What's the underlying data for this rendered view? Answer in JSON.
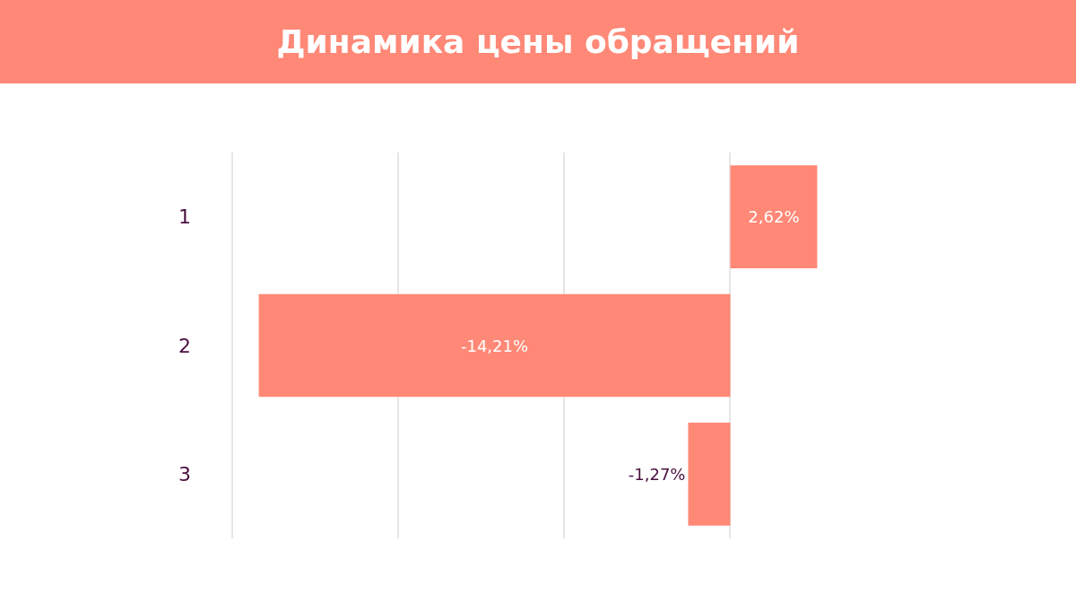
{
  "chart_data": {
    "type": "bar",
    "orientation": "horizontal",
    "title": "Динамика цены обращений",
    "categories": [
      "1",
      "2",
      "3"
    ],
    "values": [
      2.62,
      -14.21,
      -1.27
    ],
    "value_labels": [
      "2,62%",
      "-14,21%",
      "-1,27%"
    ],
    "color": "#ff8877",
    "grid": "x",
    "legend": false
  }
}
